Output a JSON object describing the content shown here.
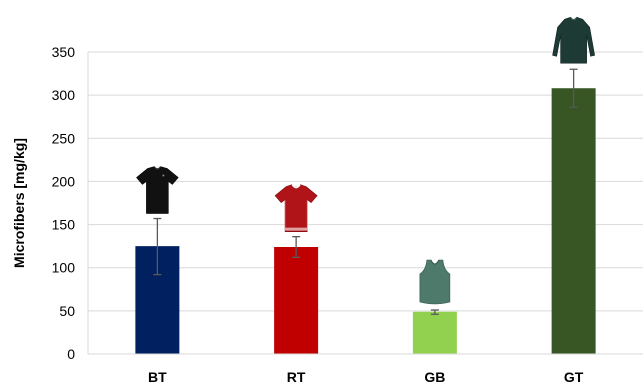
{
  "chart_data": {
    "type": "bar",
    "title": "",
    "xlabel": "",
    "ylabel": "Microfibers [mg/kg]",
    "ylim": [
      0,
      350
    ],
    "yticks": [
      0,
      50,
      100,
      150,
      200,
      250,
      300,
      350
    ],
    "grid": true,
    "legend": "none",
    "categories": [
      "BT",
      "RT",
      "GB",
      "GT"
    ],
    "values": [
      125,
      124,
      49,
      308
    ],
    "error_low": [
      92,
      112,
      46,
      286
    ],
    "error_high": [
      157,
      136,
      51,
      330
    ],
    "colors": [
      "#002060",
      "#C00000",
      "#92D050",
      "#375623"
    ],
    "garment_icons": [
      "black-tshirt-icon",
      "red-tshirt-icon",
      "green-tank-top-icon",
      "green-long-sleeve-shirt-icon"
    ]
  }
}
